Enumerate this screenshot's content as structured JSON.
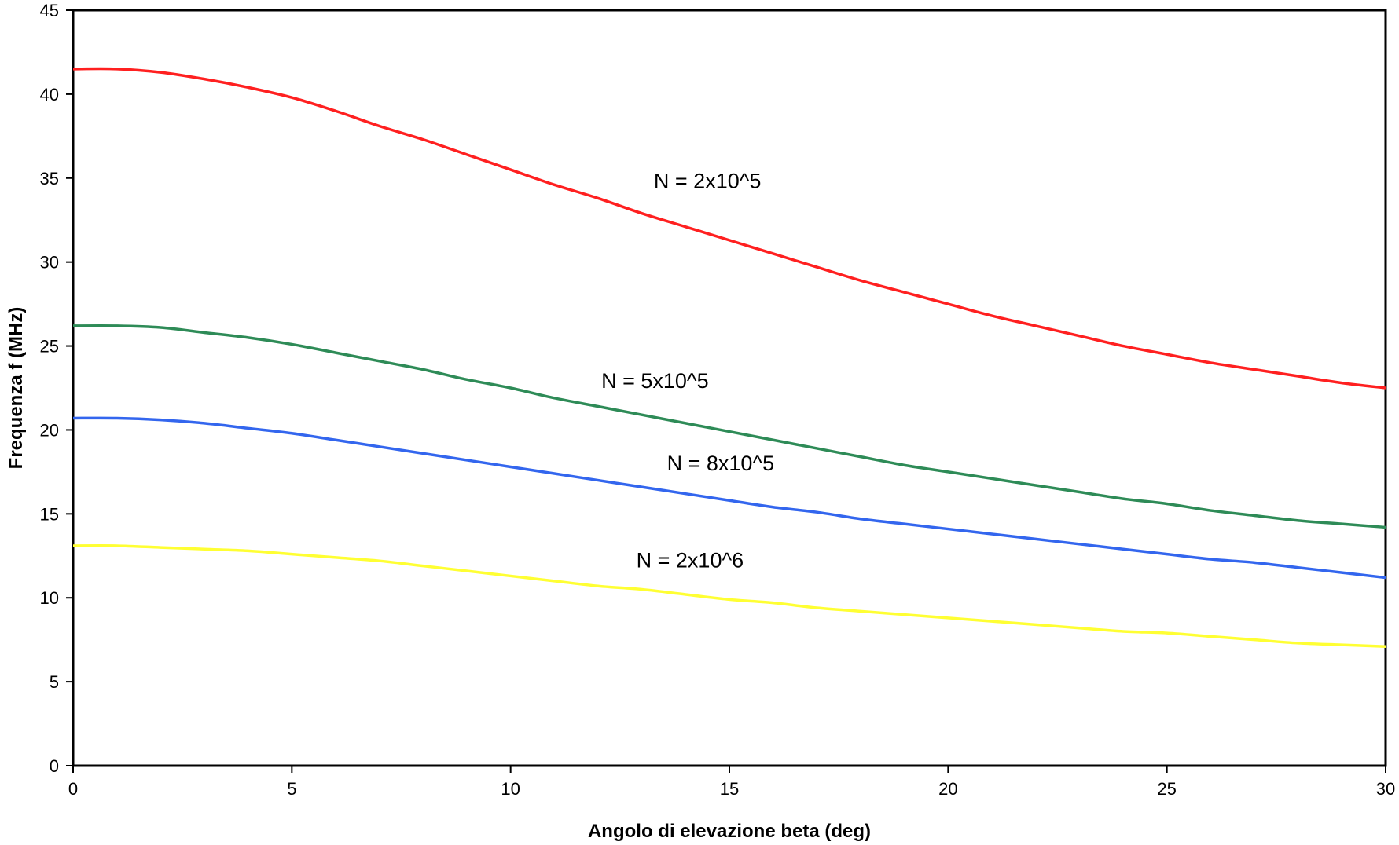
{
  "chart_data": {
    "type": "line",
    "title": "",
    "xlabel": "Angolo di elevazione beta (deg)",
    "ylabel": "Frequenza f (MHz)",
    "xlim": [
      0,
      30
    ],
    "ylim": [
      0,
      45
    ],
    "xticks": [
      0,
      5,
      10,
      15,
      20,
      25,
      30
    ],
    "yticks": [
      0,
      5,
      10,
      15,
      20,
      25,
      30,
      35,
      40,
      45
    ],
    "grid": false,
    "legend": "none",
    "x": [
      0,
      1,
      2,
      3,
      4,
      5,
      6,
      7,
      8,
      9,
      10,
      11,
      12,
      13,
      14,
      15,
      16,
      17,
      18,
      19,
      20,
      21,
      22,
      23,
      24,
      25,
      26,
      27,
      28,
      29,
      30
    ],
    "series": [
      {
        "name": "N = 2x10^5",
        "color": "#ff2020",
        "label_x": 14.5,
        "label_y": 34.4,
        "values": [
          41.5,
          41.5,
          41.3,
          40.9,
          40.4,
          39.8,
          39.0,
          38.1,
          37.3,
          36.4,
          35.5,
          34.6,
          33.8,
          32.9,
          32.1,
          31.3,
          30.5,
          29.7,
          28.9,
          28.2,
          27.5,
          26.8,
          26.2,
          25.6,
          25.0,
          24.5,
          24.0,
          23.6,
          23.2,
          22.8,
          22.5
        ]
      },
      {
        "name": "N = 5x10^5",
        "color": "#2e8b57",
        "label_x": 13.3,
        "label_y": 22.5,
        "values": [
          26.2,
          26.2,
          26.1,
          25.8,
          25.5,
          25.1,
          24.6,
          24.1,
          23.6,
          23.0,
          22.5,
          21.9,
          21.4,
          20.9,
          20.4,
          19.9,
          19.4,
          18.9,
          18.4,
          17.9,
          17.5,
          17.1,
          16.7,
          16.3,
          15.9,
          15.6,
          15.2,
          14.9,
          14.6,
          14.4,
          14.2
        ]
      },
      {
        "name": "N = 8x10^5",
        "color": "#3366ee",
        "label_x": 14.8,
        "label_y": 17.6,
        "values": [
          20.7,
          20.7,
          20.6,
          20.4,
          20.1,
          19.8,
          19.4,
          19.0,
          18.6,
          18.2,
          17.8,
          17.4,
          17.0,
          16.6,
          16.2,
          15.8,
          15.4,
          15.1,
          14.7,
          14.4,
          14.1,
          13.8,
          13.5,
          13.2,
          12.9,
          12.6,
          12.3,
          12.1,
          11.8,
          11.5,
          11.2
        ]
      },
      {
        "name": "N = 2x10^6",
        "color": "#ffff33",
        "label_x": 14.1,
        "label_y": 11.8,
        "values": [
          13.1,
          13.1,
          13.0,
          12.9,
          12.8,
          12.6,
          12.4,
          12.2,
          11.9,
          11.6,
          11.3,
          11.0,
          10.7,
          10.5,
          10.2,
          9.9,
          9.7,
          9.4,
          9.2,
          9.0,
          8.8,
          8.6,
          8.4,
          8.2,
          8.0,
          7.9,
          7.7,
          7.5,
          7.3,
          7.2,
          7.1
        ]
      }
    ]
  }
}
